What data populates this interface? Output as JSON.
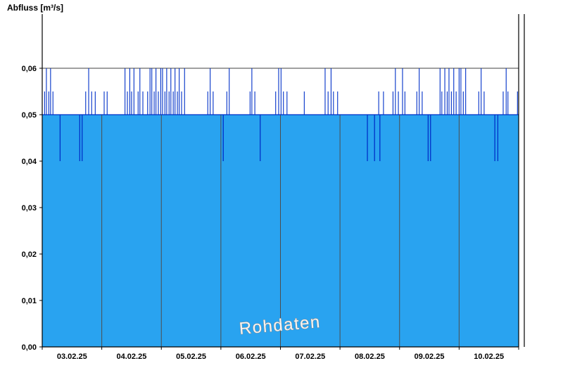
{
  "chart_data": {
    "type": "area",
    "title": "",
    "ylabel": "Abfluss [m³/s]",
    "xlabel": "",
    "watermark": "Rohdaten",
    "ylim": [
      0,
      0.06
    ],
    "x_span_days": 8,
    "x_tick_labels": [
      "03.02.25",
      "04.02.25",
      "05.02.25",
      "06.02.25",
      "07.02.25",
      "08.02.25",
      "09.02.25",
      "10.02.25"
    ],
    "y_ticks": {
      "values": [
        0,
        0.01,
        0.02,
        0.03,
        0.04,
        0.05,
        0.06
      ],
      "labels": [
        "0,00",
        "0,01",
        "0,02",
        "0,03",
        "0,04",
        "0,05",
        "0,06"
      ]
    },
    "baseline": 0.05,
    "top_gridline_value": 0.06,
    "grid": "day-boundaries",
    "legend": "none",
    "colors": {
      "fill": "#29A3F0",
      "line": "#0030C8",
      "grid": "#4D4D4D",
      "axis": "#000000",
      "watermark_fill": "#F5F5F5",
      "watermark_stroke": "#8A8A8A"
    },
    "spikes": [
      [
        0.04,
        0.055
      ],
      [
        0.07,
        0.06
      ],
      [
        0.11,
        0.055
      ],
      [
        0.14,
        0.06
      ],
      [
        0.18,
        0.055
      ],
      [
        0.73,
        0.055
      ],
      [
        0.78,
        0.06
      ],
      [
        0.83,
        0.055
      ],
      [
        0.89,
        0.055
      ],
      [
        1.04,
        0.055
      ],
      [
        1.09,
        0.055
      ],
      [
        1.39,
        0.06
      ],
      [
        1.43,
        0.055
      ],
      [
        1.47,
        0.06
      ],
      [
        1.5,
        0.055
      ],
      [
        1.54,
        0.06
      ],
      [
        1.61,
        0.055
      ],
      [
        1.64,
        0.06
      ],
      [
        1.69,
        0.055
      ],
      [
        1.77,
        0.055
      ],
      [
        1.81,
        0.06
      ],
      [
        1.84,
        0.06
      ],
      [
        1.88,
        0.055
      ],
      [
        1.91,
        0.06
      ],
      [
        1.95,
        0.055
      ],
      [
        1.99,
        0.06
      ],
      [
        2.02,
        0.06
      ],
      [
        2.06,
        0.055
      ],
      [
        2.09,
        0.06
      ],
      [
        2.13,
        0.055
      ],
      [
        2.16,
        0.06
      ],
      [
        2.2,
        0.055
      ],
      [
        2.23,
        0.06
      ],
      [
        2.27,
        0.055
      ],
      [
        2.3,
        0.06
      ],
      [
        2.34,
        0.055
      ],
      [
        2.39,
        0.06
      ],
      [
        2.78,
        0.055
      ],
      [
        2.82,
        0.06
      ],
      [
        2.87,
        0.055
      ],
      [
        3.1,
        0.055
      ],
      [
        3.14,
        0.06
      ],
      [
        3.49,
        0.055
      ],
      [
        3.52,
        0.06
      ],
      [
        3.57,
        0.055
      ],
      [
        3.92,
        0.055
      ],
      [
        3.97,
        0.06
      ],
      [
        4.01,
        0.06
      ],
      [
        4.05,
        0.055
      ],
      [
        4.11,
        0.055
      ],
      [
        4.4,
        0.055
      ],
      [
        4.75,
        0.06
      ],
      [
        4.8,
        0.055
      ],
      [
        4.85,
        0.06
      ],
      [
        4.89,
        0.055
      ],
      [
        4.96,
        0.055
      ],
      [
        5.65,
        0.055
      ],
      [
        5.73,
        0.055
      ],
      [
        5.89,
        0.055
      ],
      [
        5.93,
        0.06
      ],
      [
        5.98,
        0.055
      ],
      [
        6.05,
        0.06
      ],
      [
        6.09,
        0.055
      ],
      [
        6.29,
        0.055
      ],
      [
        6.33,
        0.06
      ],
      [
        6.38,
        0.055
      ],
      [
        6.68,
        0.06
      ],
      [
        6.71,
        0.055
      ],
      [
        6.76,
        0.06
      ],
      [
        6.8,
        0.055
      ],
      [
        6.83,
        0.06
      ],
      [
        6.87,
        0.055
      ],
      [
        6.91,
        0.06
      ],
      [
        6.95,
        0.055
      ],
      [
        7.0,
        0.06
      ],
      [
        7.03,
        0.06
      ],
      [
        7.07,
        0.055
      ],
      [
        7.11,
        0.06
      ],
      [
        7.33,
        0.055
      ],
      [
        7.37,
        0.06
      ],
      [
        7.42,
        0.055
      ],
      [
        7.74,
        0.055
      ],
      [
        7.79,
        0.06
      ],
      [
        7.82,
        0.055
      ],
      [
        7.98,
        0.055
      ]
    ],
    "dips": [
      [
        0.3,
        0.04
      ],
      [
        0.63,
        0.04
      ],
      [
        0.67,
        0.04
      ],
      [
        3.04,
        0.04
      ],
      [
        3.66,
        0.04
      ],
      [
        5.46,
        0.04
      ],
      [
        5.58,
        0.04
      ],
      [
        5.67,
        0.04
      ],
      [
        6.48,
        0.04
      ],
      [
        6.52,
        0.04
      ],
      [
        7.6,
        0.04
      ],
      [
        7.65,
        0.04
      ]
    ]
  }
}
